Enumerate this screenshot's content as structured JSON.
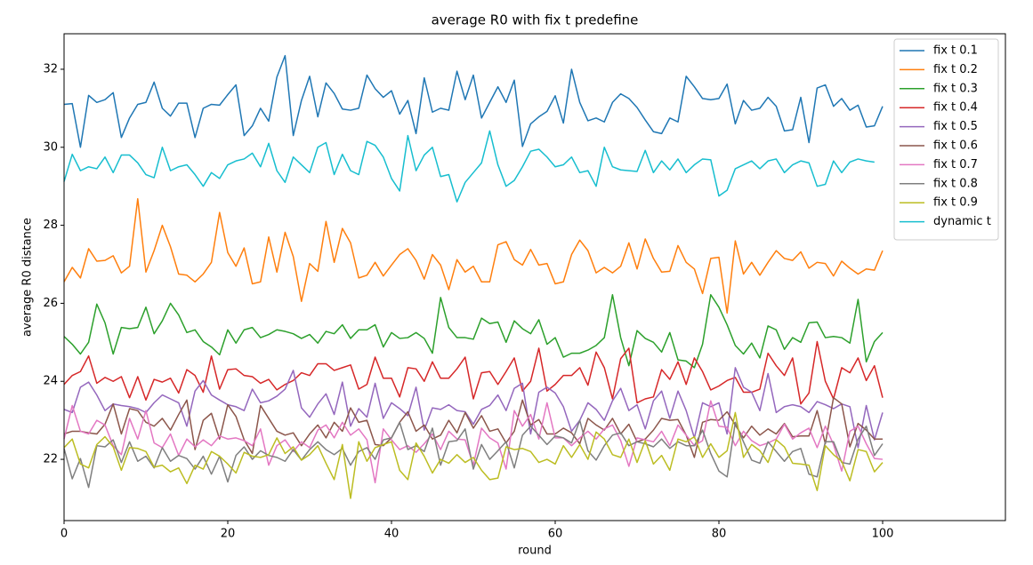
{
  "chart_data": {
    "type": "line",
    "title": "average R0 with fix t  predefine",
    "x_label": "round",
    "y_label": "average R0 distance",
    "xlim": [
      0,
      115
    ],
    "xticks": [
      0,
      20,
      40,
      60,
      80,
      100
    ],
    "ylim": [
      20.43,
      32.91
    ],
    "yticks": [
      22,
      24,
      26,
      28,
      30,
      32
    ],
    "grid": false,
    "legend": "upper right",
    "x": [
      0,
      1,
      2,
      3,
      4,
      5,
      6,
      7,
      8,
      9,
      10,
      11,
      12,
      13,
      14,
      15,
      16,
      17,
      18,
      19,
      20,
      21,
      22,
      23,
      24,
      25,
      26,
      27,
      28,
      29,
      30,
      31,
      32,
      33,
      34,
      35,
      36,
      37,
      38,
      39,
      40,
      41,
      42,
      43,
      44,
      45,
      46,
      47,
      48,
      49,
      50,
      51,
      52,
      53,
      54,
      55,
      56,
      57,
      58,
      59,
      60,
      61,
      62,
      63,
      64,
      65,
      66,
      67,
      68,
      69,
      70,
      71,
      72,
      73,
      74,
      75,
      76,
      77,
      78,
      79,
      80,
      81,
      82,
      83,
      84,
      85,
      86,
      87,
      88,
      89,
      90,
      91,
      92,
      93,
      94,
      95,
      96,
      97,
      98,
      99,
      100
    ],
    "series": [
      {
        "name": "fix t 0.1",
        "color": "#1f77b4",
        "values": [
          31.1,
          31.12,
          30.0,
          31.33,
          31.15,
          31.22,
          31.4,
          30.25,
          30.75,
          31.1,
          31.15,
          31.67,
          31.0,
          30.8,
          31.13,
          31.13,
          30.25,
          31.0,
          31.1,
          31.08,
          31.35,
          31.6,
          30.3,
          30.55,
          31.0,
          30.67,
          31.8,
          32.35,
          30.3,
          31.2,
          31.82,
          30.78,
          31.65,
          31.38,
          30.98,
          30.95,
          31.0,
          31.85,
          31.5,
          31.28,
          31.45,
          30.85,
          31.2,
          30.35,
          31.78,
          30.9,
          31.0,
          30.95,
          31.95,
          31.22,
          31.85,
          30.75,
          31.15,
          31.55,
          31.15,
          31.72,
          30.02,
          30.6,
          30.78,
          30.92,
          31.32,
          30.62,
          32.0,
          31.15,
          30.68,
          30.75,
          30.65,
          31.15,
          31.37,
          31.25,
          31.02,
          30.7,
          30.4,
          30.35,
          30.75,
          30.65,
          31.82,
          31.55,
          31.25,
          31.22,
          31.25,
          31.62,
          30.6,
          31.2,
          30.95,
          31.0,
          31.28,
          31.05,
          30.42,
          30.45,
          31.28,
          30.12,
          31.52,
          31.6,
          31.05,
          31.25,
          30.95,
          31.08,
          30.52,
          30.55,
          31.05
        ]
      },
      {
        "name": "fix t 0.2",
        "color": "#ff7f0e",
        "values": [
          26.55,
          26.92,
          26.65,
          27.4,
          27.08,
          27.1,
          27.22,
          26.78,
          26.95,
          28.68,
          26.8,
          27.35,
          28.0,
          27.45,
          26.75,
          26.72,
          26.55,
          26.75,
          27.05,
          28.33,
          27.3,
          26.95,
          27.42,
          26.5,
          26.55,
          27.7,
          26.8,
          27.82,
          27.2,
          26.05,
          27.02,
          26.82,
          28.1,
          27.05,
          27.92,
          27.55,
          26.65,
          26.72,
          27.05,
          26.7,
          26.98,
          27.25,
          27.4,
          27.1,
          26.62,
          27.25,
          26.98,
          26.35,
          27.12,
          26.8,
          26.95,
          26.55,
          26.55,
          27.5,
          27.58,
          27.12,
          26.98,
          27.38,
          26.98,
          27.02,
          26.5,
          26.55,
          27.25,
          27.62,
          27.35,
          26.78,
          26.92,
          26.78,
          26.95,
          27.55,
          26.88,
          27.65,
          27.15,
          26.8,
          26.82,
          27.48,
          27.05,
          26.88,
          26.25,
          27.15,
          27.18,
          25.75,
          27.6,
          26.75,
          27.05,
          26.72,
          27.05,
          27.35,
          27.15,
          27.1,
          27.32,
          26.9,
          27.05,
          27.02,
          26.7,
          27.08,
          26.9,
          26.75,
          26.88,
          26.85,
          27.35
        ]
      },
      {
        "name": "fix t 0.3",
        "color": "#2ca02c",
        "values": [
          25.15,
          24.95,
          24.7,
          25.0,
          25.98,
          25.5,
          24.7,
          25.38,
          25.35,
          25.38,
          25.9,
          25.22,
          25.55,
          26.0,
          25.7,
          25.25,
          25.32,
          25.02,
          24.88,
          24.68,
          25.32,
          24.98,
          25.32,
          25.38,
          25.12,
          25.2,
          25.32,
          25.28,
          25.22,
          25.1,
          25.2,
          24.98,
          25.28,
          25.22,
          25.45,
          25.1,
          25.32,
          25.32,
          25.45,
          24.88,
          25.25,
          25.1,
          25.12,
          25.25,
          25.1,
          24.72,
          26.15,
          25.38,
          25.12,
          25.12,
          25.08,
          25.62,
          25.48,
          25.52,
          25.0,
          25.55,
          25.35,
          25.22,
          25.58,
          24.95,
          25.12,
          24.62,
          24.72,
          24.72,
          24.8,
          24.92,
          25.12,
          26.22,
          25.12,
          24.4,
          25.3,
          25.1,
          25.0,
          24.75,
          25.25,
          24.55,
          24.52,
          24.35,
          24.95,
          26.22,
          25.9,
          25.45,
          24.92,
          24.7,
          24.98,
          24.6,
          25.42,
          25.32,
          24.82,
          25.12,
          25.0,
          25.5,
          25.52,
          25.12,
          25.15,
          25.12,
          24.98,
          26.1,
          24.5,
          25.02,
          25.25
        ]
      },
      {
        "name": "fix t 0.4",
        "color": "#d62728",
        "values": [
          23.92,
          24.15,
          24.25,
          24.65,
          23.95,
          24.1,
          24.0,
          24.12,
          23.58,
          24.12,
          23.52,
          24.05,
          23.98,
          24.08,
          23.7,
          24.3,
          24.15,
          23.72,
          24.65,
          23.8,
          24.3,
          24.32,
          24.15,
          24.12,
          23.95,
          24.05,
          23.78,
          23.92,
          24.02,
          24.22,
          24.15,
          24.45,
          24.45,
          24.28,
          24.35,
          24.42,
          23.8,
          23.92,
          24.62,
          24.08,
          24.08,
          23.6,
          24.35,
          24.32,
          24.0,
          24.5,
          24.08,
          24.08,
          24.32,
          24.62,
          23.55,
          24.22,
          24.25,
          23.92,
          24.25,
          24.6,
          23.75,
          24.0,
          24.85,
          23.75,
          23.92,
          24.15,
          24.15,
          24.35,
          23.9,
          24.75,
          24.35,
          23.55,
          24.58,
          24.85,
          23.45,
          23.55,
          23.6,
          24.3,
          24.05,
          24.5,
          23.92,
          24.6,
          24.25,
          23.78,
          23.88,
          24.02,
          24.1,
          23.72,
          23.72,
          23.8,
          24.72,
          24.4,
          24.15,
          24.6,
          23.42,
          23.7,
          25.02,
          24.0,
          23.55,
          24.35,
          24.22,
          24.6,
          24.02,
          24.4,
          23.58
        ]
      },
      {
        "name": "fix t 0.5",
        "color": "#9467bd",
        "values": [
          23.28,
          23.2,
          23.85,
          23.98,
          23.65,
          23.25,
          23.42,
          23.38,
          23.35,
          23.3,
          23.2,
          23.45,
          23.65,
          23.55,
          23.45,
          22.85,
          23.75,
          24.02,
          23.65,
          23.52,
          23.4,
          23.35,
          23.25,
          23.8,
          23.45,
          23.5,
          23.62,
          23.8,
          24.28,
          23.32,
          23.08,
          23.42,
          23.68,
          23.15,
          23.98,
          22.85,
          23.3,
          23.08,
          23.95,
          23.05,
          23.45,
          23.3,
          23.12,
          23.85,
          22.75,
          23.32,
          23.28,
          23.4,
          23.25,
          23.22,
          22.9,
          23.28,
          23.38,
          23.65,
          23.25,
          23.82,
          23.95,
          22.65,
          23.72,
          23.85,
          23.7,
          23.35,
          22.72,
          23.0,
          23.45,
          23.28,
          23.0,
          23.5,
          23.82,
          23.25,
          23.4,
          22.78,
          23.5,
          23.75,
          23.05,
          23.75,
          23.25,
          22.55,
          23.45,
          23.35,
          23.45,
          22.65,
          24.35,
          23.85,
          23.72,
          23.25,
          24.2,
          23.2,
          23.35,
          23.4,
          23.35,
          23.2,
          23.48,
          23.4,
          23.3,
          23.42,
          23.35,
          22.3,
          23.38,
          22.5,
          23.2
        ]
      },
      {
        "name": "fix t 0.6",
        "color": "#8c564b",
        "values": [
          22.65,
          22.72,
          22.72,
          22.68,
          22.65,
          22.9,
          23.42,
          22.65,
          23.3,
          23.25,
          22.95,
          22.85,
          23.05,
          22.75,
          23.15,
          23.52,
          22.25,
          23.0,
          23.18,
          22.52,
          23.4,
          23.1,
          22.5,
          22.15,
          23.38,
          23.05,
          22.72,
          22.62,
          22.68,
          22.35,
          22.65,
          22.88,
          22.55,
          22.95,
          22.72,
          23.32,
          22.95,
          23.0,
          22.38,
          22.35,
          22.55,
          22.95,
          23.22,
          22.72,
          22.88,
          22.52,
          22.62,
          23.0,
          22.68,
          23.2,
          22.8,
          23.12,
          22.72,
          22.78,
          22.42,
          22.72,
          23.52,
          22.88,
          23.02,
          22.65,
          22.65,
          22.8,
          22.68,
          22.4,
          23.05,
          22.88,
          22.75,
          23.05,
          22.65,
          22.9,
          22.45,
          22.52,
          22.75,
          23.05,
          23.0,
          23.02,
          22.62,
          22.05,
          22.95,
          23.02,
          23.0,
          23.22,
          22.88,
          22.55,
          22.85,
          22.62,
          22.78,
          22.65,
          22.92,
          22.58,
          22.6,
          22.6,
          23.25,
          22.4,
          23.58,
          23.42,
          22.32,
          22.92,
          22.75,
          22.52,
          22.52
        ]
      },
      {
        "name": "fix t 0.7",
        "color": "#e377c2",
        "values": [
          22.52,
          23.38,
          22.72,
          22.65,
          23.0,
          22.88,
          22.35,
          22.12,
          23.05,
          22.52,
          23.25,
          22.42,
          22.3,
          22.65,
          22.1,
          22.52,
          22.32,
          22.5,
          22.35,
          22.6,
          22.52,
          22.55,
          22.48,
          22.35,
          22.78,
          21.85,
          22.35,
          22.5,
          22.2,
          22.45,
          22.3,
          22.75,
          22.88,
          22.55,
          22.95,
          22.62,
          22.78,
          22.5,
          21.4,
          22.78,
          22.5,
          22.25,
          22.35,
          22.18,
          22.4,
          22.65,
          22.25,
          22.72,
          22.52,
          22.5,
          21.85,
          22.8,
          22.55,
          22.42,
          21.75,
          23.25,
          22.85,
          23.15,
          22.52,
          23.45,
          22.55,
          22.55,
          22.35,
          22.55,
          22.72,
          22.52,
          22.78,
          22.88,
          22.48,
          21.82,
          22.55,
          22.5,
          22.45,
          22.72,
          22.35,
          22.88,
          22.62,
          22.35,
          22.48,
          23.5,
          22.85,
          22.82,
          22.35,
          22.72,
          22.48,
          22.35,
          22.42,
          22.52,
          22.9,
          22.52,
          22.68,
          22.8,
          22.3,
          22.85,
          22.38,
          21.7,
          22.72,
          22.85,
          22.4,
          22.02,
          22.0
        ]
      },
      {
        "name": "fix t 0.8",
        "color": "#7f7f7f",
        "values": [
          22.28,
          21.5,
          22.02,
          21.28,
          22.35,
          22.32,
          22.5,
          21.92,
          22.45,
          21.95,
          22.08,
          21.78,
          22.3,
          21.95,
          22.1,
          22.02,
          21.75,
          22.08,
          21.62,
          22.08,
          21.42,
          22.1,
          22.32,
          22.0,
          22.22,
          22.1,
          22.05,
          21.95,
          22.25,
          21.98,
          22.25,
          22.45,
          22.25,
          22.12,
          22.28,
          21.85,
          22.2,
          22.3,
          22.0,
          22.5,
          22.55,
          22.95,
          22.25,
          22.35,
          22.2,
          22.8,
          21.85,
          22.45,
          22.48,
          22.78,
          21.75,
          22.38,
          22.0,
          22.22,
          22.45,
          21.78,
          22.62,
          22.85,
          22.62,
          22.38,
          22.6,
          22.55,
          22.42,
          23.0,
          22.22,
          21.98,
          22.35,
          22.62,
          22.68,
          22.35,
          22.45,
          22.4,
          22.32,
          22.52,
          22.28,
          22.45,
          22.35,
          22.35,
          22.75,
          22.15,
          21.7,
          21.55,
          22.95,
          22.45,
          21.98,
          21.9,
          22.45,
          22.2,
          21.95,
          22.2,
          22.28,
          21.62,
          21.55,
          22.45,
          22.45,
          21.92,
          21.88,
          22.52,
          22.85,
          22.1,
          22.4
        ]
      },
      {
        "name": "fix t 0.9",
        "color": "#bcbd22",
        "values": [
          22.3,
          22.52,
          21.88,
          21.78,
          22.38,
          22.58,
          22.32,
          21.72,
          22.3,
          22.28,
          22.2,
          21.8,
          21.85,
          21.68,
          21.78,
          21.38,
          21.85,
          21.75,
          22.2,
          22.08,
          21.88,
          21.65,
          22.18,
          22.08,
          22.05,
          22.12,
          22.55,
          22.15,
          22.32,
          21.98,
          22.12,
          22.35,
          21.9,
          21.48,
          22.38,
          21.0,
          22.45,
          21.95,
          22.3,
          22.38,
          22.45,
          21.72,
          21.48,
          22.42,
          22.08,
          21.65,
          22.0,
          21.9,
          22.12,
          21.92,
          22.05,
          21.72,
          21.48,
          21.52,
          22.32,
          22.25,
          22.28,
          22.2,
          21.92,
          22.0,
          21.88,
          22.35,
          22.05,
          22.38,
          22.0,
          22.7,
          22.52,
          22.12,
          22.05,
          22.52,
          21.92,
          22.48,
          21.88,
          22.1,
          21.72,
          22.52,
          22.45,
          22.58,
          22.05,
          22.4,
          22.05,
          22.22,
          23.2,
          22.05,
          22.38,
          22.22,
          21.92,
          22.5,
          22.32,
          21.9,
          21.88,
          21.85,
          21.2,
          22.35,
          22.12,
          21.95,
          21.45,
          22.25,
          22.2,
          21.68,
          21.92
        ]
      },
      {
        "name": "dynamic t",
        "color": "#17becf",
        "values": [
          29.12,
          29.82,
          29.4,
          29.5,
          29.45,
          29.75,
          29.35,
          29.8,
          29.8,
          29.6,
          29.3,
          29.22,
          30.0,
          29.4,
          29.5,
          29.55,
          29.3,
          29.0,
          29.35,
          29.2,
          29.55,
          29.65,
          29.7,
          29.85,
          29.5,
          30.1,
          29.4,
          29.1,
          29.75,
          29.55,
          29.35,
          30.0,
          30.12,
          29.3,
          29.82,
          29.4,
          29.3,
          30.15,
          30.05,
          29.75,
          29.2,
          28.88,
          30.3,
          29.4,
          29.8,
          30.0,
          29.25,
          29.3,
          28.6,
          29.1,
          29.35,
          29.6,
          30.42,
          29.55,
          29.0,
          29.15,
          29.5,
          29.9,
          29.95,
          29.75,
          29.5,
          29.55,
          29.75,
          29.35,
          29.4,
          29.0,
          30.0,
          29.5,
          29.42,
          29.4,
          29.38,
          29.92,
          29.35,
          29.65,
          29.42,
          29.7,
          29.35,
          29.55,
          29.7,
          29.68,
          28.75,
          28.9,
          29.45,
          29.55,
          29.65,
          29.45,
          29.65,
          29.7,
          29.35,
          29.55,
          29.65,
          29.6,
          29.0,
          29.05,
          29.65,
          29.35,
          29.62,
          29.7,
          29.65,
          29.62,
          null
        ]
      }
    ]
  }
}
